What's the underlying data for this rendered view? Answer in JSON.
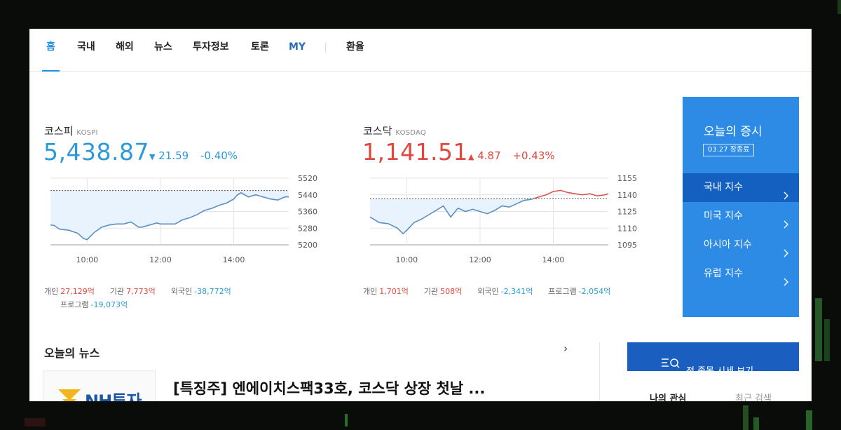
{
  "nav": {
    "items": [
      "홈",
      "국내",
      "해외",
      "뉴스",
      "투자정보",
      "토론",
      "MY",
      "환율"
    ]
  },
  "kospi": {
    "name": "코스피",
    "code": "KOSPI",
    "value": "5,438.87",
    "change": "21.59",
    "change_pct": "-0.40%",
    "direction": "down",
    "investors": {
      "individual_label": "개인",
      "individual": "27,129억",
      "institution_label": "기관",
      "institution": "7,773억",
      "foreign_label": "외국인",
      "foreign": "-38,772억",
      "program_label": "프로그램",
      "program": "-19,073억"
    }
  },
  "kosdaq": {
    "name": "코스닥",
    "code": "KOSDAQ",
    "value": "1,141.51",
    "change": "4.87",
    "change_pct": "+0.43%",
    "direction": "up",
    "investors": {
      "individual_label": "개인",
      "individual": "1,701억",
      "institution_label": "기관",
      "institution": "508억",
      "foreign_label": "외국인",
      "foreign": "-2,341억",
      "program_label": "프로그램",
      "program": "-2,054억"
    }
  },
  "chart_data": [
    {
      "type": "line",
      "title": "코스피",
      "ylim": [
        5200,
        5520
      ],
      "yticks": [
        "5520",
        "5440",
        "5360",
        "5280",
        "5200"
      ],
      "x_ticks": [
        "10:00",
        "12:00",
        "14:00"
      ],
      "x_range_hours": [
        9,
        15.5
      ],
      "baseline": 5460.46,
      "colors": {
        "line": "#5b8fc4",
        "fill": "#e9f3fd",
        "above": "#5b8fc4",
        "axis": "#9a9a9a"
      },
      "series": [
        {
          "x": [
            9.0,
            9.1,
            9.25,
            9.5,
            9.75,
            9.9,
            10.0,
            10.2,
            10.4,
            10.6,
            10.8,
            11.0,
            11.2,
            11.4,
            11.5,
            11.7,
            11.9,
            12.0,
            12.2,
            12.4,
            12.6,
            12.8,
            13.0,
            13.2,
            13.4,
            13.6,
            13.8,
            14.0,
            14.1,
            14.2,
            14.4,
            14.6,
            14.8,
            15.0,
            15.2,
            15.4,
            15.5
          ],
          "y": [
            5295,
            5293,
            5275,
            5270,
            5255,
            5230,
            5225,
            5260,
            5285,
            5295,
            5300,
            5300,
            5310,
            5285,
            5285,
            5295,
            5305,
            5300,
            5300,
            5300,
            5320,
            5330,
            5345,
            5365,
            5375,
            5390,
            5400,
            5420,
            5440,
            5450,
            5430,
            5440,
            5430,
            5420,
            5415,
            5430,
            5430
          ]
        }
      ]
    },
    {
      "type": "line",
      "title": "코스닥",
      "ylim": [
        1095,
        1155
      ],
      "yticks": [
        "1155",
        "1140",
        "1125",
        "1110",
        "1095"
      ],
      "x_ticks": [
        "10:00",
        "12:00",
        "14:00"
      ],
      "x_range_hours": [
        9,
        15.5
      ],
      "baseline": 1136.64,
      "colors": {
        "line": "#5b8fc4",
        "fill": "#e9f3fd",
        "above": "#d9534f",
        "axis": "#9a9a9a"
      },
      "series": [
        {
          "x": [
            9.0,
            9.1,
            9.25,
            9.5,
            9.75,
            9.9,
            10.0,
            10.2,
            10.4,
            10.6,
            10.8,
            11.0,
            11.2,
            11.4,
            11.6,
            11.8,
            12.0,
            12.2,
            12.4,
            12.6,
            12.8,
            13.0,
            13.2,
            13.4,
            13.5,
            13.6,
            13.8,
            14.0,
            14.2,
            14.4,
            14.6,
            14.8,
            15.0,
            15.2,
            15.4,
            15.5
          ],
          "y": [
            1120,
            1118,
            1115,
            1114,
            1110,
            1105,
            1108,
            1115,
            1118,
            1122,
            1126,
            1130,
            1120,
            1128,
            1125,
            1127,
            1125,
            1123,
            1126,
            1130,
            1129,
            1132,
            1135,
            1136,
            1137,
            1138,
            1140,
            1143,
            1144,
            1142,
            1141,
            1140,
            1141,
            1139,
            1140,
            1141
          ]
        }
      ]
    }
  ],
  "sidebar": {
    "title": "오늘의 증시",
    "badge": "03.27 장종료",
    "items": [
      "국내 지수",
      "미국 지수",
      "아시아 지수",
      "유럽 지수"
    ],
    "active": 0,
    "chevron": "›",
    "color": "#2d8be6"
  },
  "news": {
    "section_title": "오늘의 뉴스",
    "arrow": "›",
    "thumb_logo": "NH투자",
    "headline": "[특징주] 엔에이치스팩33호, 코스닥 상장 첫날 ..."
  },
  "all_button": {
    "label": "전 종목 시세 보기",
    "icon": "search-list-icon"
  },
  "tabs2": [
    "나의 관심",
    "최근 검색"
  ]
}
